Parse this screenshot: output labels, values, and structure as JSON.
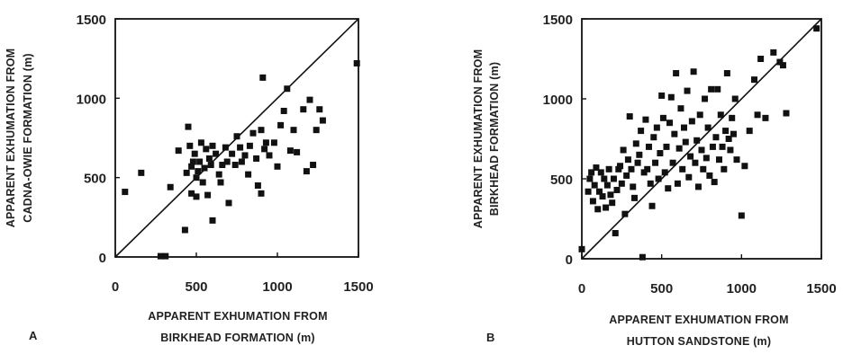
{
  "chart_data": [
    {
      "type": "scatter",
      "panel_label": "A",
      "xlabel": [
        "APPARENT EXHUMATION FROM",
        "BIRKHEAD FORMATION (m)"
      ],
      "ylabel": [
        "APPARENT EXHUMATION FROM",
        "CADNA-OWIE FORMATION (m)"
      ],
      "x_ticks": [
        "0",
        "500",
        "1000",
        "1500"
      ],
      "y_ticks": [
        "0",
        "500",
        "1000",
        "1500"
      ],
      "xlim": [
        0,
        1500
      ],
      "ylim": [
        0,
        1500
      ],
      "reference_line": "1:1",
      "points": [
        [
          60,
          410
        ],
        [
          160,
          530
        ],
        [
          280,
          5
        ],
        [
          310,
          5
        ],
        [
          340,
          440
        ],
        [
          390,
          670
        ],
        [
          430,
          170
        ],
        [
          440,
          530
        ],
        [
          450,
          820
        ],
        [
          460,
          700
        ],
        [
          470,
          570
        ],
        [
          470,
          400
        ],
        [
          480,
          600
        ],
        [
          490,
          650
        ],
        [
          500,
          500
        ],
        [
          500,
          380
        ],
        [
          510,
          540
        ],
        [
          520,
          600
        ],
        [
          530,
          720
        ],
        [
          540,
          470
        ],
        [
          550,
          560
        ],
        [
          560,
          680
        ],
        [
          570,
          390
        ],
        [
          580,
          620
        ],
        [
          590,
          580
        ],
        [
          600,
          700
        ],
        [
          600,
          230
        ],
        [
          620,
          650
        ],
        [
          640,
          520
        ],
        [
          650,
          470
        ],
        [
          660,
          580
        ],
        [
          680,
          690
        ],
        [
          690,
          600
        ],
        [
          700,
          340
        ],
        [
          720,
          650
        ],
        [
          740,
          580
        ],
        [
          750,
          760
        ],
        [
          770,
          690
        ],
        [
          780,
          600
        ],
        [
          800,
          640
        ],
        [
          820,
          520
        ],
        [
          830,
          700
        ],
        [
          850,
          780
        ],
        [
          870,
          620
        ],
        [
          880,
          450
        ],
        [
          900,
          800
        ],
        [
          900,
          400
        ],
        [
          910,
          1130
        ],
        [
          920,
          680
        ],
        [
          930,
          720
        ],
        [
          950,
          640
        ],
        [
          980,
          720
        ],
        [
          1000,
          570
        ],
        [
          1020,
          830
        ],
        [
          1040,
          920
        ],
        [
          1060,
          1060
        ],
        [
          1080,
          670
        ],
        [
          1100,
          800
        ],
        [
          1120,
          660
        ],
        [
          1160,
          930
        ],
        [
          1180,
          540
        ],
        [
          1200,
          990
        ],
        [
          1220,
          580
        ],
        [
          1240,
          800
        ],
        [
          1260,
          930
        ],
        [
          1280,
          860
        ],
        [
          1490,
          1220
        ]
      ]
    },
    {
      "type": "scatter",
      "panel_label": "B",
      "xlabel": [
        "APPARENT EXHUMATION FROM",
        "HUTTON SANDSTONE (m)"
      ],
      "ylabel": [
        "APPARENT EXHUMATION FROM",
        "BIRKHEAD FORMATION (m)"
      ],
      "x_ticks": [
        "0",
        "500",
        "1000",
        "1500"
      ],
      "y_ticks": [
        "0",
        "500",
        "1000",
        "1500"
      ],
      "xlim": [
        0,
        1500
      ],
      "ylim": [
        0,
        1500
      ],
      "reference_line": "1:1",
      "points": [
        [
          0,
          60
        ],
        [
          40,
          420
        ],
        [
          50,
          500
        ],
        [
          60,
          540
        ],
        [
          70,
          360
        ],
        [
          80,
          460
        ],
        [
          90,
          570
        ],
        [
          100,
          310
        ],
        [
          110,
          420
        ],
        [
          120,
          540
        ],
        [
          130,
          390
        ],
        [
          140,
          500
        ],
        [
          150,
          320
        ],
        [
          160,
          460
        ],
        [
          170,
          560
        ],
        [
          180,
          400
        ],
        [
          190,
          350
        ],
        [
          200,
          500
        ],
        [
          210,
          160
        ],
        [
          220,
          430
        ],
        [
          230,
          560
        ],
        [
          240,
          580
        ],
        [
          250,
          470
        ],
        [
          260,
          680
        ],
        [
          270,
          280
        ],
        [
          280,
          520
        ],
        [
          290,
          620
        ],
        [
          300,
          890
        ],
        [
          310,
          560
        ],
        [
          320,
          450
        ],
        [
          330,
          380
        ],
        [
          340,
          720
        ],
        [
          350,
          600
        ],
        [
          360,
          650
        ],
        [
          370,
          800
        ],
        [
          380,
          10
        ],
        [
          390,
          540
        ],
        [
          400,
          870
        ],
        [
          410,
          560
        ],
        [
          420,
          700
        ],
        [
          430,
          470
        ],
        [
          440,
          330
        ],
        [
          450,
          760
        ],
        [
          460,
          600
        ],
        [
          470,
          820
        ],
        [
          480,
          500
        ],
        [
          490,
          660
        ],
        [
          500,
          1020
        ],
        [
          510,
          880
        ],
        [
          520,
          540
        ],
        [
          530,
          700
        ],
        [
          540,
          440
        ],
        [
          550,
          850
        ],
        [
          560,
          1010
        ],
        [
          570,
          600
        ],
        [
          580,
          780
        ],
        [
          590,
          1160
        ],
        [
          600,
          470
        ],
        [
          610,
          690
        ],
        [
          620,
          940
        ],
        [
          630,
          560
        ],
        [
          640,
          820
        ],
        [
          650,
          730
        ],
        [
          660,
          1050
        ],
        [
          670,
          510
        ],
        [
          680,
          640
        ],
        [
          690,
          860
        ],
        [
          700,
          1170
        ],
        [
          710,
          600
        ],
        [
          720,
          740
        ],
        [
          730,
          450
        ],
        [
          740,
          900
        ],
        [
          750,
          680
        ],
        [
          760,
          560
        ],
        [
          770,
          1000
        ],
        [
          780,
          630
        ],
        [
          790,
          820
        ],
        [
          800,
          520
        ],
        [
          810,
          1060
        ],
        [
          820,
          700
        ],
        [
          830,
          480
        ],
        [
          840,
          760
        ],
        [
          850,
          1060
        ],
        [
          860,
          620
        ],
        [
          870,
          900
        ],
        [
          880,
          700
        ],
        [
          890,
          560
        ],
        [
          900,
          800
        ],
        [
          910,
          1160
        ],
        [
          920,
          750
        ],
        [
          930,
          680
        ],
        [
          940,
          880
        ],
        [
          950,
          780
        ],
        [
          960,
          1000
        ],
        [
          970,
          620
        ],
        [
          1000,
          270
        ],
        [
          1020,
          580
        ],
        [
          1050,
          800
        ],
        [
          1080,
          1120
        ],
        [
          1100,
          900
        ],
        [
          1120,
          1250
        ],
        [
          1150,
          880
        ],
        [
          1200,
          1290
        ],
        [
          1240,
          1230
        ],
        [
          1260,
          1210
        ],
        [
          1280,
          910
        ],
        [
          1470,
          1440
        ]
      ]
    }
  ]
}
